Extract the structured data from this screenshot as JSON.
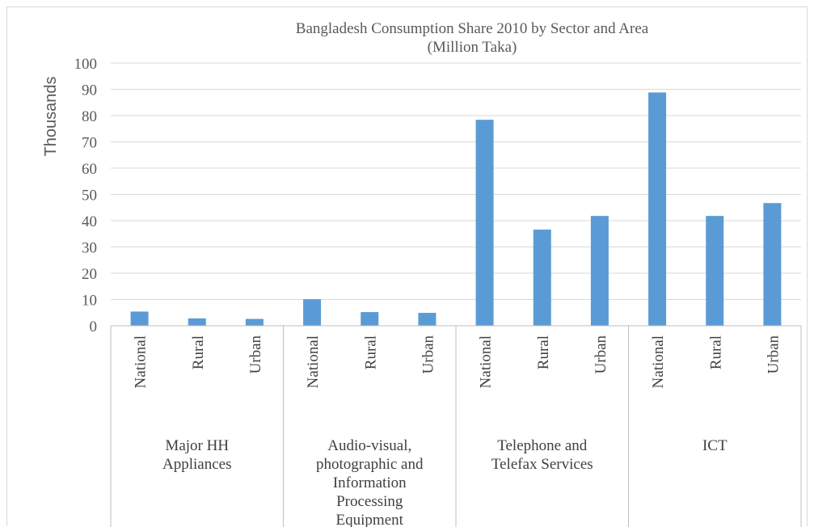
{
  "chart_data": {
    "type": "bar",
    "title_line1": "Bangladesh Consumption Share 2010 by Sector and Area",
    "title_line2": "(Million Taka)",
    "ylabel": "Thousands",
    "ylim": [
      0,
      100
    ],
    "yticks": [
      "0",
      "10",
      "20",
      "30",
      "40",
      "50",
      "60",
      "70",
      "80",
      "90",
      "100"
    ],
    "grid": true,
    "bar_color": "#5b9bd5",
    "groups": [
      {
        "lines": [
          "Major HH",
          "Appliances"
        ],
        "categories": [
          "National",
          "Rural",
          "Urban"
        ],
        "values": [
          5.4,
          2.8,
          2.6
        ]
      },
      {
        "lines": [
          "Audio-visual,",
          "photographic and",
          "Information",
          "Processing",
          "Equipment"
        ],
        "categories": [
          "National",
          "Rural",
          "Urban"
        ],
        "values": [
          10.1,
          5.2,
          4.9
        ]
      },
      {
        "lines": [
          "Telephone and",
          "Telefax Services"
        ],
        "categories": [
          "National",
          "Rural",
          "Urban"
        ],
        "values": [
          78.4,
          36.6,
          41.8
        ]
      },
      {
        "lines": [
          "ICT"
        ],
        "categories": [
          "National",
          "Rural",
          "Urban"
        ],
        "values": [
          88.8,
          41.8,
          46.7
        ]
      }
    ]
  }
}
